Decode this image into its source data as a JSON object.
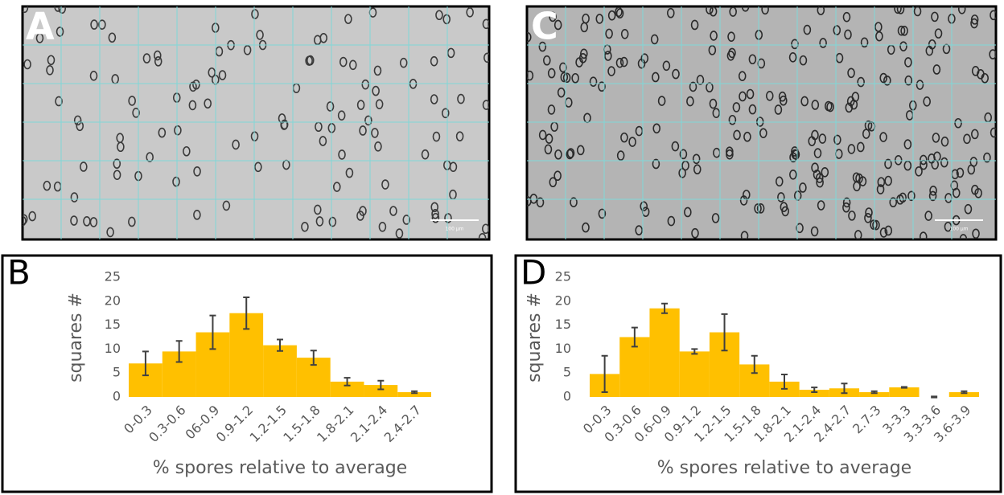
{
  "images": [
    {
      "panel_label": "A",
      "scale_bar_label": "100 µm"
    },
    {
      "panel_label": "C",
      "scale_bar_label": "100 µm"
    }
  ],
  "chart_data": [
    {
      "type": "bar",
      "panel_label": "B",
      "ylabel": "squares #",
      "xlabel": "% spores relative to average",
      "categories": [
        "0-0.3",
        "0.3-0.6",
        "06-0.9",
        "0.9-1.2",
        "1.2-1.5",
        "1.5-1.8",
        "1.8-2.1",
        "2.1-2.4",
        "2.4-2.7"
      ],
      "values": [
        7,
        9.5,
        13.5,
        17.5,
        10.8,
        8.2,
        3.2,
        2.5,
        1
      ],
      "errors": [
        2.5,
        2.2,
        3.5,
        3.3,
        1.2,
        1.5,
        0.8,
        0.9,
        0.2
      ],
      "color": "#ffc000",
      "ylim": [
        0,
        25
      ],
      "yticks": [
        0,
        5,
        10,
        15,
        20,
        25
      ],
      "grid": false
    },
    {
      "type": "bar",
      "panel_label": "D",
      "ylabel": "squares #",
      "xlabel": "% spores relative to average",
      "categories": [
        "0-0.3",
        "0.3-0.6",
        "0.6-0.9",
        "0.9-1.2",
        "1.2-1.5",
        "1.5-1.8",
        "1.8-2.1",
        "2.1-2.4",
        "2.4-2.7",
        "2.7-3",
        "3-3.3",
        "3.3-3.6",
        "3.6-3.9"
      ],
      "values": [
        4.8,
        12.5,
        18.5,
        9.5,
        13.5,
        6.8,
        3.2,
        1.5,
        1.8,
        1,
        2,
        0,
        1
      ],
      "errors": [
        3.8,
        2,
        1,
        0.5,
        3.8,
        1.8,
        1.5,
        0.5,
        1,
        0.2,
        0.1,
        0.1,
        0.2
      ],
      "color": "#ffc000",
      "ylim": [
        0,
        25
      ],
      "yticks": [
        0,
        5,
        10,
        15,
        20,
        25
      ],
      "grid": false
    }
  ]
}
